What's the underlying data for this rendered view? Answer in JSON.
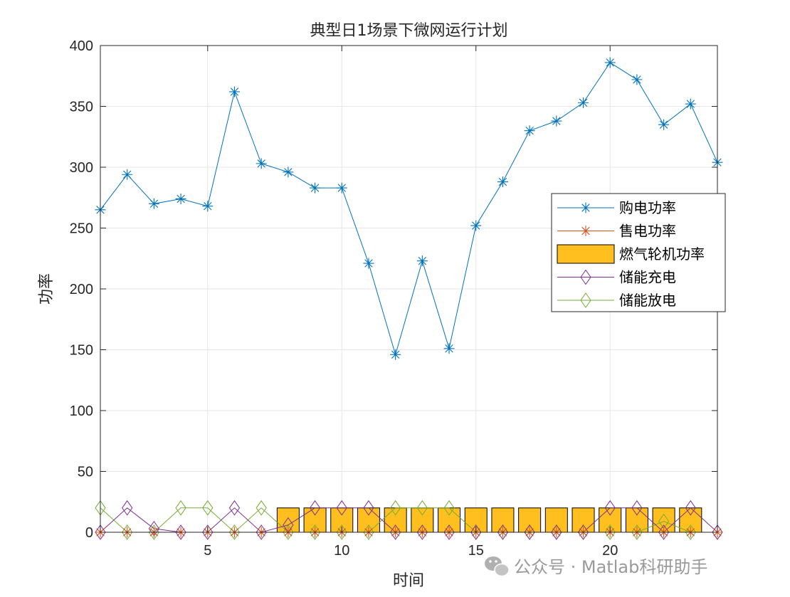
{
  "chart_data": {
    "type": "line",
    "title": "典型日1场景下微网运行计划",
    "xlabel": "时间",
    "ylabel": "功率",
    "xlim": [
      1,
      24
    ],
    "ylim": [
      0,
      400
    ],
    "xticks": [
      5,
      10,
      15,
      20
    ],
    "yticks": [
      0,
      50,
      100,
      150,
      200,
      250,
      300,
      350,
      400
    ],
    "grid": true,
    "legend_position": "right",
    "x": [
      1,
      2,
      3,
      4,
      5,
      6,
      7,
      8,
      9,
      10,
      11,
      12,
      13,
      14,
      15,
      16,
      17,
      18,
      19,
      20,
      21,
      22,
      23,
      24
    ],
    "series": [
      {
        "name": "购电功率",
        "style": "line-star",
        "color": "#0072BD",
        "values": [
          265,
          294,
          270,
          274,
          268,
          362,
          303,
          296,
          283,
          283,
          221,
          146,
          223,
          151,
          252,
          288,
          330,
          338,
          353,
          386,
          372,
          335,
          352,
          304
        ]
      },
      {
        "name": "售电功率",
        "style": "line-star",
        "color": "#D95319",
        "values": [
          0,
          0,
          0,
          0,
          0,
          0,
          0,
          0,
          0,
          0,
          0,
          0,
          0,
          0,
          0,
          0,
          0,
          0,
          0,
          0,
          0,
          0,
          0,
          0
        ]
      },
      {
        "name": "燃气轮机功率",
        "style": "bar",
        "color": "#FFBF1F",
        "values": [
          0,
          0,
          0,
          0,
          0,
          0,
          0,
          20,
          20,
          20,
          20,
          20,
          20,
          20,
          20,
          20,
          20,
          20,
          20,
          20,
          20,
          20,
          20,
          0
        ]
      },
      {
        "name": "储能充电",
        "style": "line-diamond",
        "color": "#7E2F8E",
        "values": [
          0,
          20,
          3,
          0,
          0,
          20,
          0,
          6,
          20,
          20,
          20,
          0,
          0,
          0,
          0,
          0,
          0,
          0,
          0,
          20,
          20,
          0,
          20,
          0
        ]
      },
      {
        "name": "储能放电",
        "style": "line-diamond",
        "color": "#77AC30",
        "values": [
          20,
          0,
          0,
          20,
          20,
          0,
          20,
          0,
          0,
          0,
          0,
          20,
          20,
          20,
          0,
          0,
          0,
          0,
          0,
          0,
          0,
          9,
          0,
          0
        ]
      }
    ]
  },
  "watermark": {
    "text": "公众号 · Matlab科研助手",
    "icon": "wechat-icon"
  }
}
